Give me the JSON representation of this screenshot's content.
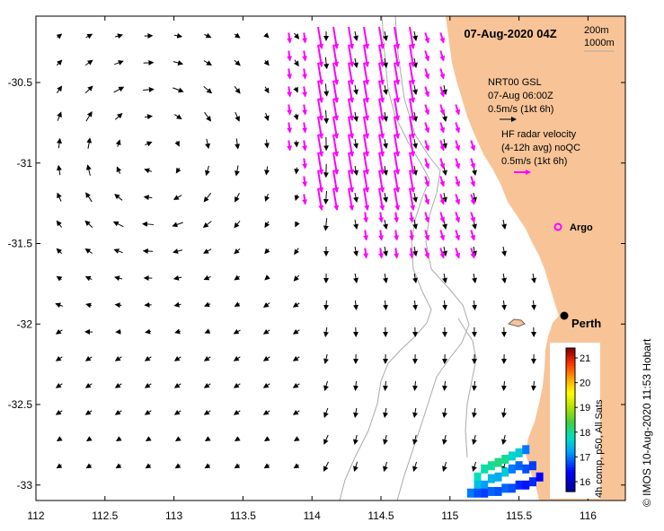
{
  "map": {
    "title": "07-Aug-2020 04Z",
    "lon_ticks": [
      "112",
      "112.5",
      "113",
      "113.5",
      "114",
      "114.5",
      "115",
      "115.5",
      "116"
    ],
    "lat_ticks": [
      "-30.5",
      "-31",
      "-31.5",
      "-32",
      "-32.5",
      "-33"
    ],
    "lon_values": [
      112,
      112.5,
      113,
      113.5,
      114,
      114.5,
      115,
      115.5,
      116
    ],
    "lat_values": [
      -30.5,
      -31,
      -31.5,
      -32,
      -32.5,
      -33
    ],
    "lon_range": [
      112,
      116.3
    ],
    "lat_range": [
      -30.1,
      -33.1
    ],
    "contours": {
      "line1": "200m",
      "line2": "1000m"
    },
    "gsl_legend": {
      "line1": "NRT00 GSL",
      "line2": "07-Aug 06:00Z",
      "line3": "0.5m/s (1kt 6h)"
    },
    "hf_legend": {
      "line1": "HF radar velocity",
      "line2": "(4-12h avg) noQC",
      "line3": "0.5m/s (1kt 6h)"
    },
    "argo_label": "Argo",
    "city_label": "Perth",
    "colorbar": {
      "ticks": [
        "21",
        "20",
        "19",
        "18",
        "17",
        "16"
      ],
      "values": [
        21,
        20,
        19,
        18,
        17,
        16
      ],
      "range": [
        15.6,
        21.4
      ],
      "label": "4h comp, p50, All Sats"
    },
    "credit": "© IMOS 10-Aug-2020 11:53 Hobart",
    "colors": {
      "land": "#f8c497",
      "hf_vectors": "#ff00ff",
      "gsl_vectors": "#000000",
      "contour": "#aaaaaa",
      "argo": "#ff00ff"
    },
    "sst_patch": [
      {
        "lon": 115.2,
        "lat": -32.95,
        "sst": 17.8
      },
      {
        "lon": 115.25,
        "lat": -32.9,
        "sst": 17.9
      },
      {
        "lon": 115.3,
        "lat": -32.88,
        "sst": 18.0
      },
      {
        "lon": 115.35,
        "lat": -32.86,
        "sst": 18.1
      },
      {
        "lon": 115.4,
        "lat": -32.84,
        "sst": 18.0
      },
      {
        "lon": 115.45,
        "lat": -32.82,
        "sst": 17.7
      },
      {
        "lon": 115.5,
        "lat": -32.8,
        "sst": 17.6
      },
      {
        "lon": 115.55,
        "lat": -32.78,
        "sst": 17.0
      },
      {
        "lon": 115.2,
        "lat": -33.0,
        "sst": 17.5
      },
      {
        "lon": 115.25,
        "lat": -33.0,
        "sst": 17.2
      },
      {
        "lon": 115.3,
        "lat": -32.96,
        "sst": 17.4
      },
      {
        "lon": 115.35,
        "lat": -32.95,
        "sst": 17.3
      },
      {
        "lon": 115.4,
        "lat": -32.92,
        "sst": 17.6
      },
      {
        "lon": 115.45,
        "lat": -32.9,
        "sst": 17.0
      },
      {
        "lon": 115.5,
        "lat": -32.88,
        "sst": 16.9
      },
      {
        "lon": 115.55,
        "lat": -32.9,
        "sst": 16.8
      },
      {
        "lon": 115.6,
        "lat": -32.88,
        "sst": 16.7
      },
      {
        "lon": 115.15,
        "lat": -33.05,
        "sst": 17.0
      },
      {
        "lon": 115.2,
        "lat": -33.05,
        "sst": 16.8
      },
      {
        "lon": 115.25,
        "lat": -33.05,
        "sst": 16.7
      },
      {
        "lon": 115.3,
        "lat": -33.04,
        "sst": 16.9
      },
      {
        "lon": 115.35,
        "lat": -33.04,
        "sst": 16.8
      },
      {
        "lon": 115.4,
        "lat": -33.02,
        "sst": 16.9
      },
      {
        "lon": 115.45,
        "lat": -33.02,
        "sst": 16.8
      },
      {
        "lon": 115.5,
        "lat": -33.0,
        "sst": 16.6
      },
      {
        "lon": 115.55,
        "lat": -33.0,
        "sst": 16.5
      },
      {
        "lon": 115.6,
        "lat": -32.98,
        "sst": 16.6
      },
      {
        "lon": 115.65,
        "lat": -32.95,
        "sst": 16.4
      }
    ]
  }
}
